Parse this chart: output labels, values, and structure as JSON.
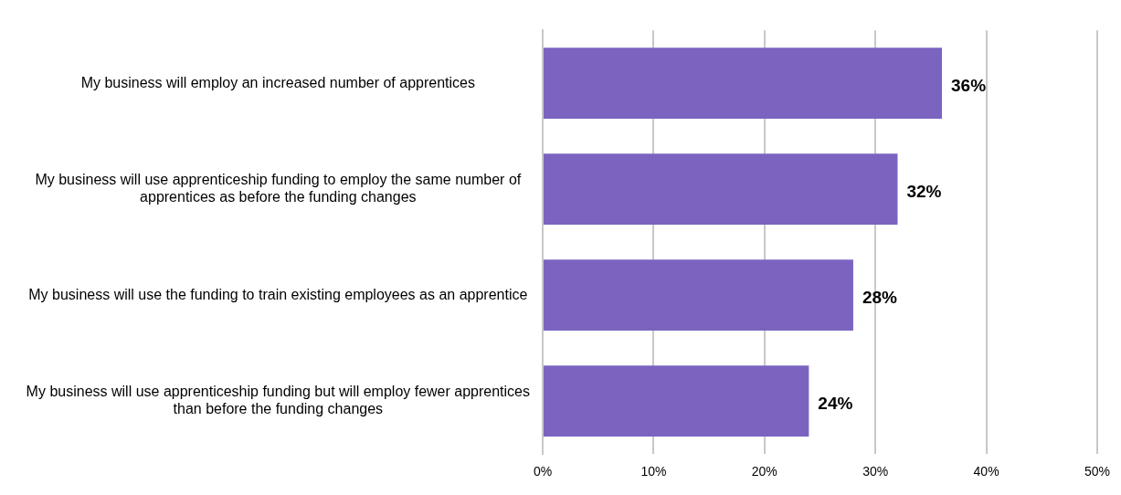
{
  "chart_data": {
    "type": "bar",
    "orientation": "horizontal",
    "categories": [
      "My business will employ an increased number of apprentices",
      "My business will use apprenticeship funding to employ the same number of apprentices as before the funding changes",
      "My business will use the funding to train existing employees as an apprentice",
      "My business will use apprenticeship funding but will employ fewer apprentices than before the funding changes"
    ],
    "values": [
      36,
      32,
      28,
      24
    ],
    "value_labels": [
      "36%",
      "32%",
      "28%",
      "24%"
    ],
    "color": "#7b64c0",
    "xlim": [
      0,
      50
    ],
    "xticks": [
      {
        "value": 0,
        "label": "0%"
      },
      {
        "value": 10,
        "label": "10%"
      },
      {
        "value": 20,
        "label": "20%"
      },
      {
        "value": 30,
        "label": "30%"
      },
      {
        "value": 40,
        "label": "40%"
      },
      {
        "value": 50,
        "label": "50%"
      }
    ],
    "grid": "x",
    "legend": false
  }
}
